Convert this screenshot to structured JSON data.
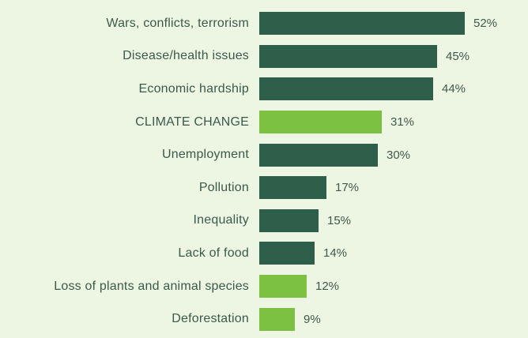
{
  "page": {
    "background_color": "#edf5e3"
  },
  "chart_data": {
    "type": "bar",
    "orientation": "horizontal",
    "title": "",
    "xlabel": "",
    "ylabel": "",
    "unit": "%",
    "xlim": [
      0,
      60
    ],
    "grid": false,
    "legend": "none",
    "categories": [
      "Wars, conflicts, terrorism",
      "Disease/health issues",
      "Economic hardship",
      "CLIMATE CHANGE",
      "Unemployment",
      "Pollution",
      "Inequality",
      "Lack of food",
      "Loss of plants and animal species",
      "Deforestation"
    ],
    "values": [
      52,
      45,
      44,
      31,
      30,
      17,
      15,
      14,
      12,
      9
    ],
    "value_labels": [
      "52%",
      "45%",
      "44%",
      "31%",
      "30%",
      "17%",
      "15%",
      "14%",
      "12%",
      "9%"
    ],
    "highlight": [
      false,
      false,
      false,
      true,
      false,
      false,
      false,
      false,
      true,
      true
    ],
    "bar_color_default": "#2e5f4b",
    "bar_color_highlight": "#7cc142",
    "label_color": "#3c5a4c",
    "value_color": "#41594d"
  }
}
